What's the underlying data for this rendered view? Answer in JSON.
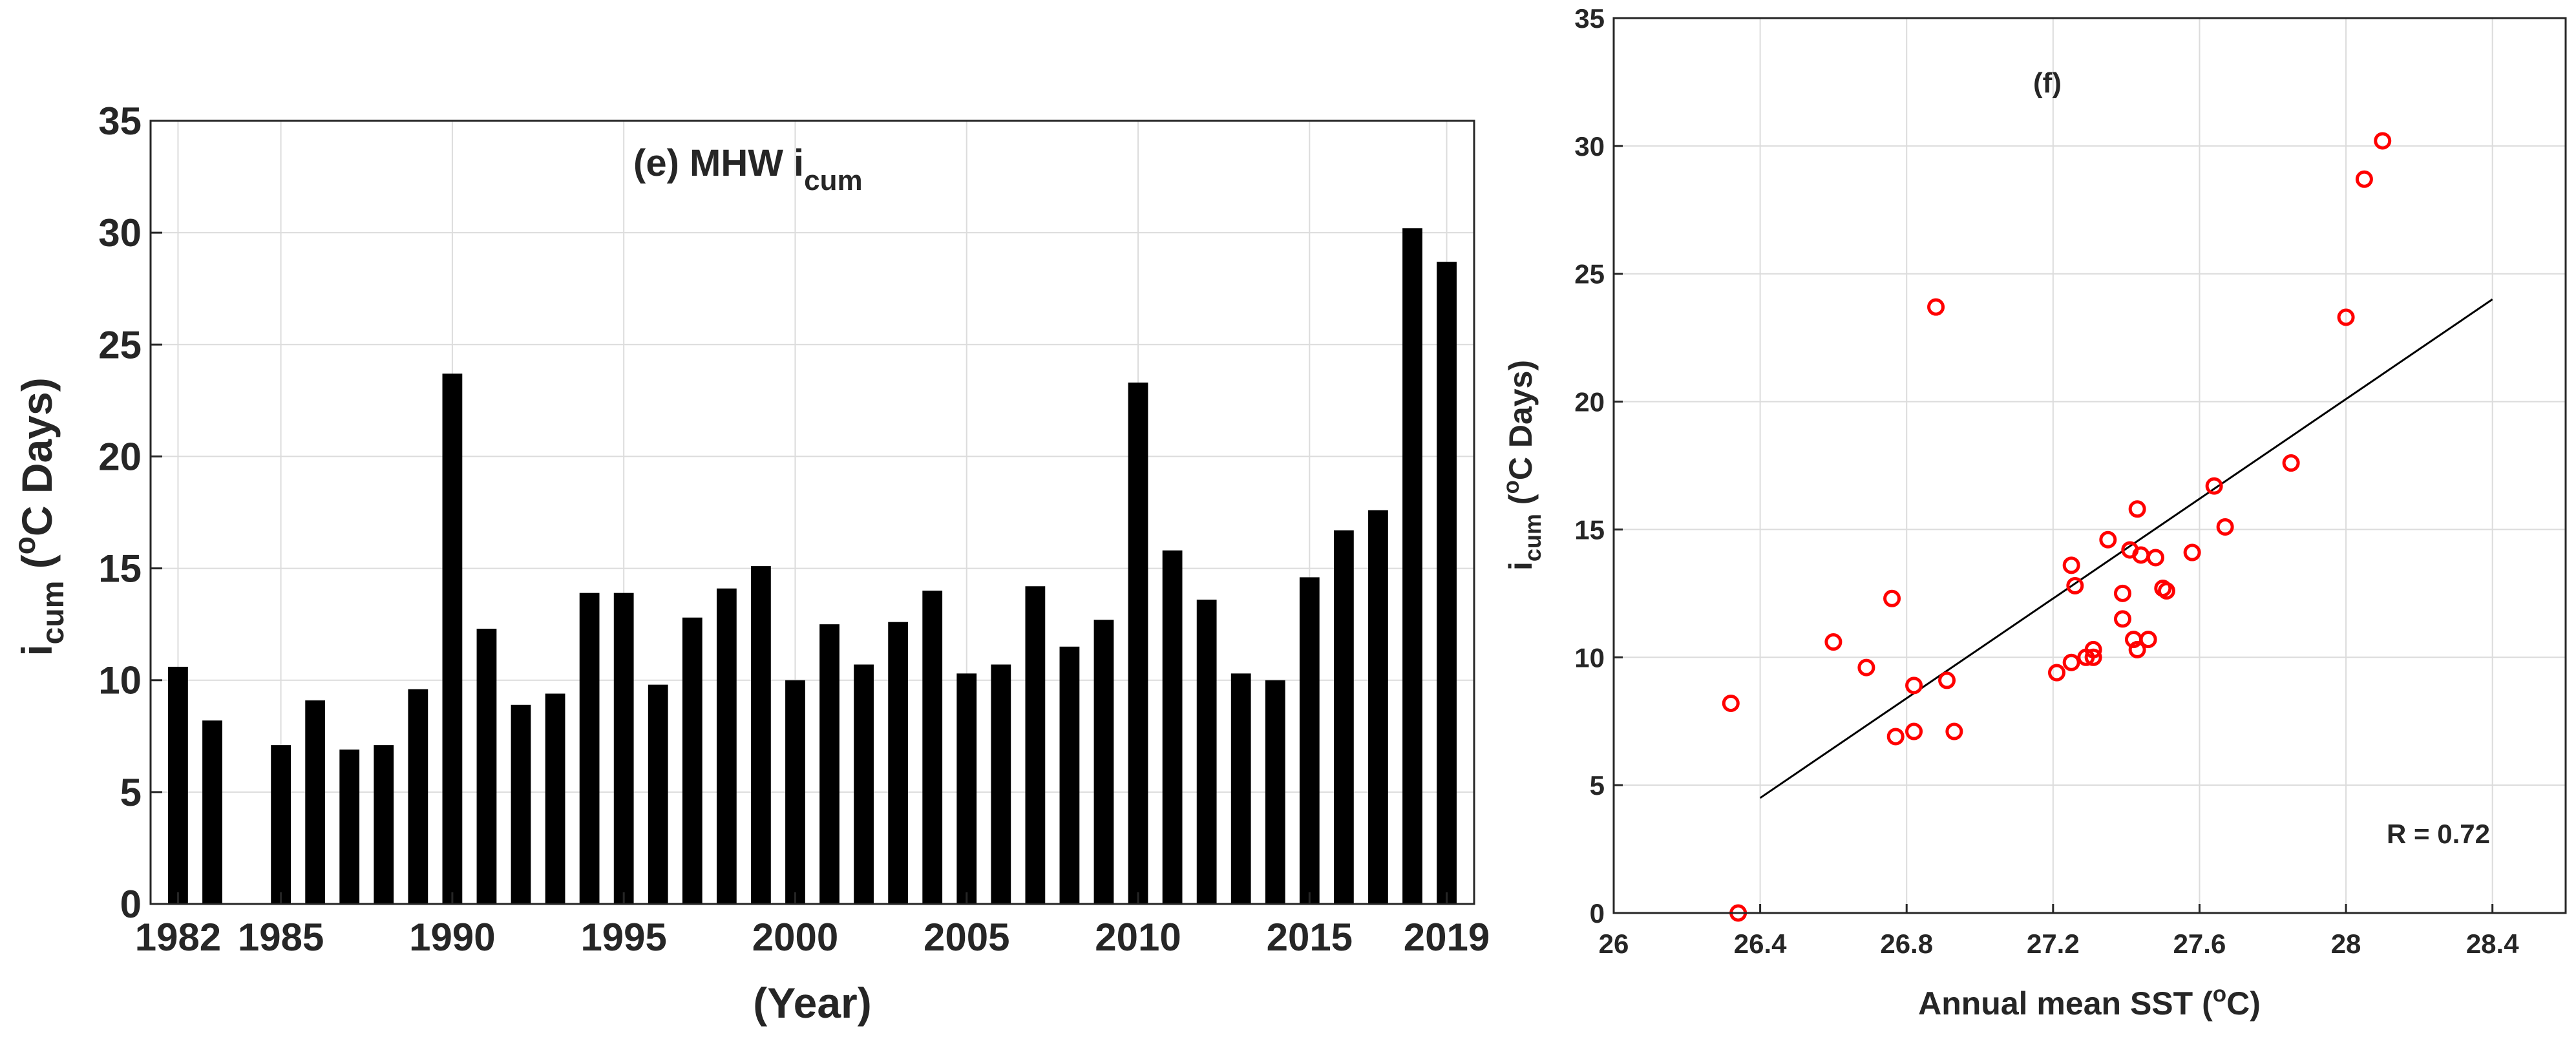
{
  "chart_data": [
    {
      "type": "bar",
      "panel": "e",
      "title": "(e) MHW i",
      "title_sub": "cum",
      "xlabel": "(Year)",
      "ylabel_main": "i",
      "ylabel_sub": "cum",
      "ylabel_unit_pre": " (",
      "ylabel_unit_sup": "o",
      "ylabel_unit_post": "C Days)",
      "xlim": [
        1981.2,
        2019.8
      ],
      "ylim": [
        0,
        35
      ],
      "xticks": [
        1982,
        1985,
        1990,
        1995,
        2000,
        2005,
        2010,
        2015,
        2019
      ],
      "yticks": [
        0,
        5,
        10,
        15,
        20,
        25,
        30,
        35
      ],
      "grid": true,
      "bar_color": "#000000",
      "years": [
        1982,
        1983,
        1984,
        1985,
        1986,
        1987,
        1988,
        1989,
        1990,
        1991,
        1992,
        1993,
        1994,
        1995,
        1996,
        1997,
        1998,
        1999,
        2000,
        2001,
        2002,
        2003,
        2004,
        2005,
        2006,
        2007,
        2008,
        2009,
        2010,
        2011,
        2012,
        2013,
        2014,
        2015,
        2016,
        2017,
        2018,
        2019
      ],
      "values": [
        10.6,
        8.2,
        0,
        7.1,
        9.1,
        6.9,
        7.1,
        9.6,
        23.7,
        12.3,
        8.9,
        9.4,
        13.9,
        13.9,
        9.8,
        12.8,
        14.1,
        15.1,
        10.0,
        12.5,
        10.7,
        12.6,
        14.0,
        10.3,
        10.7,
        14.2,
        11.5,
        12.7,
        23.3,
        15.8,
        13.6,
        10.3,
        10.0,
        14.6,
        16.7,
        17.6,
        30.2,
        28.7
      ]
    },
    {
      "type": "scatter",
      "panel": "f",
      "title": "(f)",
      "xlabel_pre": "Annual mean SST (",
      "xlabel_sup": "o",
      "xlabel_post": "C)",
      "ylabel_main": "i",
      "ylabel_sub": "cum",
      "ylabel_unit_pre": " (",
      "ylabel_unit_sup": "o",
      "ylabel_unit_post": "C Days)",
      "xlim": [
        26,
        28.6
      ],
      "ylim": [
        0,
        35
      ],
      "xticks": [
        26,
        26.4,
        26.8,
        27.2,
        27.6,
        28,
        28.4
      ],
      "yticks": [
        0,
        5,
        10,
        15,
        20,
        25,
        30,
        35
      ],
      "grid": true,
      "marker_color": "#ff0000",
      "fit_line_color": "#000000",
      "annotation": "R = 0.72",
      "points": [
        [
          26.32,
          8.2
        ],
        [
          26.34,
          0.0
        ],
        [
          26.6,
          10.6
        ],
        [
          26.69,
          9.6
        ],
        [
          26.76,
          12.3
        ],
        [
          26.77,
          6.9
        ],
        [
          26.82,
          7.1
        ],
        [
          26.82,
          8.9
        ],
        [
          26.88,
          23.7
        ],
        [
          26.91,
          9.1
        ],
        [
          26.93,
          7.1
        ],
        [
          27.21,
          9.4
        ],
        [
          27.25,
          9.8
        ],
        [
          27.25,
          13.6
        ],
        [
          27.26,
          12.8
        ],
        [
          27.29,
          10.0
        ],
        [
          27.31,
          10.3
        ],
        [
          27.31,
          10.0
        ],
        [
          27.35,
          14.6
        ],
        [
          27.39,
          11.5
        ],
        [
          27.39,
          12.5
        ],
        [
          27.41,
          14.2
        ],
        [
          27.42,
          10.7
        ],
        [
          27.43,
          10.3
        ],
        [
          27.43,
          15.8
        ],
        [
          27.44,
          14.0
        ],
        [
          27.46,
          10.7
        ],
        [
          27.48,
          13.9
        ],
        [
          27.5,
          12.7
        ],
        [
          27.51,
          12.6
        ],
        [
          27.58,
          14.1
        ],
        [
          27.64,
          16.7
        ],
        [
          27.67,
          15.1
        ],
        [
          27.85,
          17.6
        ],
        [
          28.0,
          23.3
        ],
        [
          28.05,
          28.7
        ],
        [
          28.1,
          30.2
        ]
      ],
      "fit_line": [
        [
          26.4,
          4.5
        ],
        [
          28.4,
          24.0
        ]
      ]
    }
  ]
}
